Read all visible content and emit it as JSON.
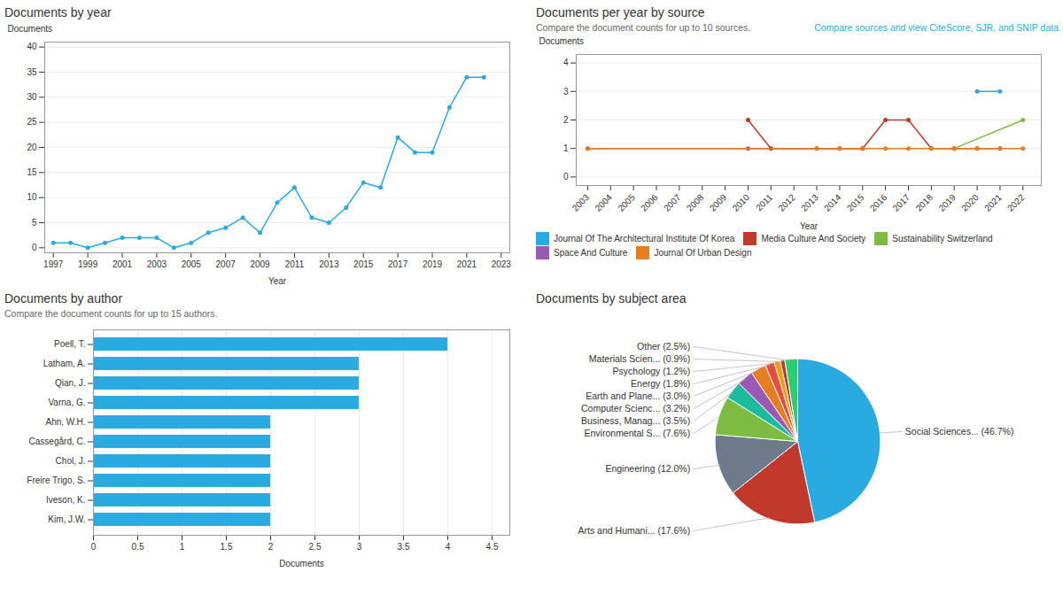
{
  "chart_data": [
    {
      "type": "line",
      "title": "Documents by year",
      "x": [
        1997,
        1998,
        1999,
        2000,
        2001,
        2002,
        2003,
        2004,
        2005,
        2006,
        2007,
        2008,
        2009,
        2010,
        2011,
        2012,
        2013,
        2014,
        2015,
        2016,
        2017,
        2018,
        2019,
        2020,
        2021,
        2022
      ],
      "values": [
        1,
        1,
        0,
        1,
        2,
        2,
        2,
        0,
        1,
        3,
        4,
        6,
        3,
        9,
        12,
        6,
        5,
        8,
        13,
        12,
        22,
        19,
        19,
        28,
        34,
        34
      ],
      "color": "#29abe2",
      "marker": "circle",
      "xlabel": "Year",
      "ylabel": "Documents",
      "xlim": [
        1996.5,
        2023.5
      ],
      "ylim": [
        -1,
        41
      ],
      "xticks": [
        1997,
        1999,
        2001,
        2003,
        2005,
        2007,
        2009,
        2011,
        2013,
        2015,
        2017,
        2019,
        2021,
        2023
      ],
      "yticks": [
        0,
        5,
        10,
        15,
        20,
        25,
        30,
        35,
        40
      ],
      "grid": true
    },
    {
      "type": "line",
      "title": "Documents per year by source",
      "subtitle": "Compare the document counts for up to 10 sources.",
      "annotations": [
        {
          "text": "Compare sources and view CiteScore, SJR, and SNIP data",
          "color": "#29abe2"
        }
      ],
      "xlabel": "Year",
      "ylabel": "Documents",
      "xlim": [
        2002.5,
        2022.8
      ],
      "ylim": [
        -0.3,
        4.3
      ],
      "xticks": [
        2003,
        2004,
        2005,
        2006,
        2007,
        2008,
        2009,
        2010,
        2011,
        2012,
        2013,
        2014,
        2015,
        2016,
        2017,
        2018,
        2019,
        2020,
        2021,
        2022
      ],
      "yticks": [
        0,
        1,
        2,
        3,
        4
      ],
      "grid": true,
      "legend": "bottom",
      "marker": "circle",
      "series": [
        {
          "name": "Journal Of The Architectural Institute Of Korea",
          "color": "#29abe2",
          "x": [
            2020,
            2021
          ],
          "values": [
            3,
            3
          ]
        },
        {
          "name": "Media Culture And Society",
          "color": "#c0392b",
          "x": [
            2010,
            2011,
            2013,
            2014,
            2015,
            2016,
            2017,
            2018,
            2019,
            2020,
            2021
          ],
          "values": [
            2,
            1,
            1,
            1,
            1,
            2,
            2,
            1,
            1,
            1,
            1
          ]
        },
        {
          "name": "Sustainability Switzerland",
          "color": "#7dbb42",
          "x": [
            2019,
            2022
          ],
          "values": [
            1,
            2
          ]
        },
        {
          "name": "Space And Culture",
          "color": "#9b59b6",
          "x": [
            2003,
            2010,
            2015
          ],
          "values": [
            1,
            1,
            1
          ]
        },
        {
          "name": "Journal Of Urban Design",
          "color": "#e67e22",
          "x": [
            2003,
            2013,
            2014,
            2015,
            2016,
            2017,
            2018,
            2019,
            2020,
            2021,
            2022
          ],
          "values": [
            1,
            1,
            1,
            1,
            1,
            1,
            1,
            1,
            1,
            1,
            1
          ]
        }
      ]
    },
    {
      "type": "bar",
      "orientation": "horizontal",
      "title": "Documents by author",
      "subtitle": "Compare the document counts for up to 15 authors.",
      "categories": [
        "Poell, T.",
        "Latham, A.",
        "Qian, J.",
        "Varna, G.",
        "Ahn, W.H.",
        "Cassegård, C.",
        "Chol, J.",
        "Freire Trigo, S.",
        "Iveson, K.",
        "Kim, J.W."
      ],
      "values": [
        4,
        3,
        3,
        3,
        2,
        2,
        2,
        2,
        2,
        2
      ],
      "color": "#29abe2",
      "xlabel": "Documents",
      "xlim": [
        0,
        4.7
      ],
      "xticks": [
        0,
        0.5,
        1,
        1.5,
        2,
        2.5,
        3,
        3.5,
        4,
        4.5
      ],
      "grid": true
    },
    {
      "type": "pie",
      "title": "Documents by subject area",
      "categories": [
        "Social Sciences... (46.7%)",
        "Arts and Humani... (17.6%)",
        "Engineering (12.0%)",
        "Environmental S... (7.6%)",
        "Business, Manag... (3.5%)",
        "Computer Scienc... (3.2%)",
        "Earth and Plane... (3.0%)",
        "Energy (1.8%)",
        "Psychology (1.2%)",
        "Materials Scien... (0.9%)",
        "Other (2.5%)"
      ],
      "values": [
        46.7,
        17.6,
        12.0,
        7.6,
        3.5,
        3.2,
        3.0,
        1.8,
        1.2,
        0.9,
        2.5
      ],
      "colors": [
        "#29abe2",
        "#c0392b",
        "#6d7a8a",
        "#7dbb42",
        "#1abc9c",
        "#9b59b6",
        "#e67e22",
        "#e74c3c",
        "#f39c12",
        "#c0392b",
        "#2ecc71"
      ]
    }
  ]
}
